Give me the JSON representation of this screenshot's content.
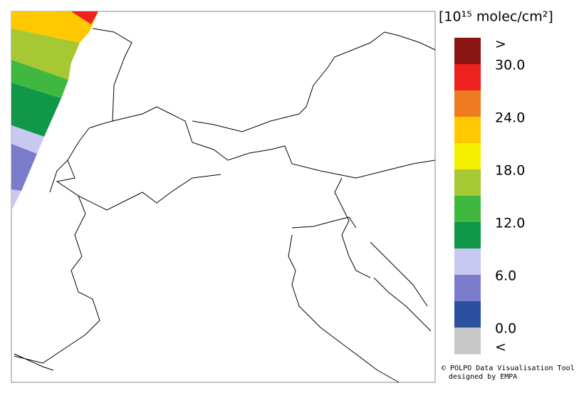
{
  "colorbar": {
    "unit": "[10¹⁵ molec/cm²]",
    "colors": [
      "#8b1414",
      "#ee2020",
      "#ee7a22",
      "#ffc800",
      "#f5f000",
      "#a6c832",
      "#40b840",
      "#109848",
      "#c8c8f0",
      "#7c7ccc",
      "#2c50a0",
      "#c8c8c8"
    ],
    "labels": [
      ">",
      "30.0",
      "24.0",
      "18.0",
      "12.0",
      "6.0",
      "0.0",
      "<"
    ]
  },
  "credits": [
    "© POLPO Data Visualisation Tool",
    "designed by EMPA"
  ]
}
